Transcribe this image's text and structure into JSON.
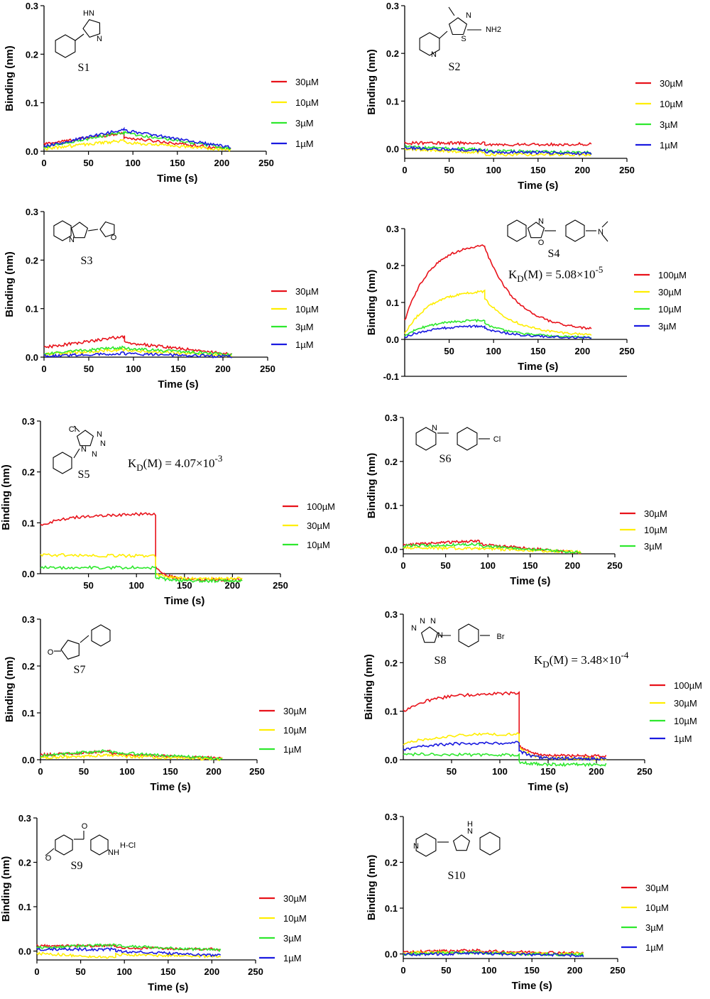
{
  "colors": {
    "30µM_red": "#e8121a",
    "100µM": "#e8121a",
    "30µM_y": "#ffee00",
    "10µM": "#ffee00",
    "3µM_g": "#2ee82e",
    "1µM": "#1a1ae0"
  },
  "chart_data": [
    {
      "type": "line",
      "compound": "S1",
      "xlabel": "Time (s)",
      "ylabel": "Binding (nm)",
      "xlim": [
        0,
        250
      ],
      "ylim": [
        0,
        0.3
      ],
      "xticks": [
        "0",
        "50",
        "100",
        "150",
        "200",
        "250"
      ],
      "yticks": [
        "0.0",
        "0.1",
        "0.2",
        "0.3"
      ],
      "dissociation_at": 90,
      "end": 210,
      "kd": "",
      "series": [
        {
          "name": "30µM",
          "color": "#e8121a",
          "assoc": [
            0.015,
            0.038
          ],
          "dissoc": [
            0.028,
            0.004
          ]
        },
        {
          "name": "10µM",
          "color": "#ffee00",
          "assoc": [
            0.005,
            0.022
          ],
          "dissoc": [
            0.018,
            0.003
          ]
        },
        {
          "name": "3µM",
          "color": "#2ee82e",
          "assoc": [
            0.008,
            0.04
          ],
          "dissoc": [
            0.038,
            0.006
          ]
        },
        {
          "name": "1µM",
          "color": "#1a1ae0",
          "assoc": [
            0.01,
            0.045
          ],
          "dissoc": [
            0.043,
            0.008
          ]
        }
      ]
    },
    {
      "type": "line",
      "compound": "S2",
      "xlabel": "Time (s)",
      "ylabel": "Binding (nm)",
      "xlim": [
        0,
        250
      ],
      "ylim": [
        -0.02,
        0.3
      ],
      "xticks": [
        "0",
        "50",
        "100",
        "150",
        "200",
        "250"
      ],
      "yticks": [
        "0.0",
        "0.1",
        "0.2",
        "0.3"
      ],
      "dissociation_at": 90,
      "end": 210,
      "kd": "",
      "series": [
        {
          "name": "30µM",
          "color": "#e8121a",
          "assoc": [
            0.012,
            0.012
          ],
          "dissoc": [
            0.008,
            0.01
          ]
        },
        {
          "name": "10µM",
          "color": "#ffee00",
          "assoc": [
            0.0,
            -0.008
          ],
          "dissoc": [
            -0.012,
            -0.012
          ]
        },
        {
          "name": "3µM",
          "color": "#2ee82e",
          "assoc": [
            0.004,
            -0.002
          ],
          "dissoc": [
            -0.004,
            -0.008
          ]
        },
        {
          "name": "1µM",
          "color": "#1a1ae0",
          "assoc": [
            0.002,
            -0.004
          ],
          "dissoc": [
            -0.006,
            -0.01
          ]
        }
      ]
    },
    {
      "type": "line",
      "compound": "S3",
      "xlabel": "Time (s)",
      "ylabel": "Binding (nm)",
      "xlim": [
        0,
        250
      ],
      "ylim": [
        0,
        0.3
      ],
      "xticks": [
        "0",
        "50",
        "100",
        "150",
        "200",
        "250"
      ],
      "yticks": [
        "0.0",
        "0.1",
        "0.2",
        "0.3"
      ],
      "dissociation_at": 90,
      "end": 210,
      "kd": "",
      "series": [
        {
          "name": "30µM",
          "color": "#e8121a",
          "assoc": [
            0.02,
            0.043
          ],
          "dissoc": [
            0.03,
            0.006
          ]
        },
        {
          "name": "10µM",
          "color": "#ffee00",
          "assoc": [
            0.006,
            0.016
          ],
          "dissoc": [
            0.014,
            0.003
          ]
        },
        {
          "name": "3µM",
          "color": "#2ee82e",
          "assoc": [
            0.008,
            0.02
          ],
          "dissoc": [
            0.018,
            0.005
          ]
        },
        {
          "name": "1µM",
          "color": "#1a1ae0",
          "assoc": [
            0.002,
            0.008
          ],
          "dissoc": [
            0.007,
            0.001
          ]
        }
      ]
    },
    {
      "type": "line",
      "compound": "S4",
      "xlabel": "Time (s)",
      "ylabel": "Binding (nm)",
      "xlim": [
        0,
        250
      ],
      "ylim": [
        -0.1,
        0.3
      ],
      "xticks": [
        "50",
        "100",
        "150",
        "200",
        "250"
      ],
      "yticks": [
        "-0.1",
        "0.0",
        "0.1",
        "0.2",
        "0.3"
      ],
      "dissociation_at": 90,
      "end": 210,
      "kd": "K",
      "kd_sub": "D",
      "kd_rest": "(M) = 5.08×10",
      "kd_exp": "-5",
      "series": [
        {
          "name": "100µM",
          "color": "#e8121a",
          "assoc": [
            0.05,
            0.255
          ],
          "dissoc": [
            0.25,
            0.022
          ],
          "shape": "kin"
        },
        {
          "name": "30µM",
          "color": "#ffee00",
          "assoc": [
            0.015,
            0.13
          ],
          "dissoc": [
            0.11,
            0.01
          ],
          "shape": "kin"
        },
        {
          "name": "10µM",
          "color": "#2ee82e",
          "assoc": [
            0.01,
            0.052
          ],
          "dissoc": [
            0.042,
            0.005
          ],
          "shape": "kin"
        },
        {
          "name": "3µM",
          "color": "#1a1ae0",
          "assoc": [
            0.005,
            0.036
          ],
          "dissoc": [
            0.03,
            0.004
          ],
          "shape": "kin"
        }
      ]
    },
    {
      "type": "line",
      "compound": "S5",
      "xlabel": "Time (s)",
      "ylabel": "Binding (nm)",
      "xlim": [
        0,
        250
      ],
      "ylim": [
        0,
        0.3
      ],
      "xticks": [
        "50",
        "100",
        "150",
        "200",
        "250"
      ],
      "yticks": [
        "0.0",
        "0.1",
        "0.2",
        "0.3"
      ],
      "dissociation_at": 120,
      "end": 210,
      "kd": "K",
      "kd_sub": "D",
      "kd_rest": "(M) = 4.07×10",
      "kd_exp": "-3",
      "series": [
        {
          "name": "100µM",
          "color": "#e8121a",
          "assoc": [
            0.095,
            0.117
          ],
          "dissoc": [
            0.012,
            -0.012
          ],
          "shape": "fast"
        },
        {
          "name": "30µM",
          "color": "#ffee00",
          "assoc": [
            0.038,
            0.035
          ],
          "dissoc": [
            0.0,
            -0.01
          ],
          "shape": "fast"
        },
        {
          "name": "10µM",
          "color": "#2ee82e",
          "assoc": [
            0.012,
            0.012
          ],
          "dissoc": [
            -0.006,
            -0.014
          ],
          "shape": "fast"
        }
      ]
    },
    {
      "type": "line",
      "compound": "S6",
      "xlabel": "Time (s)",
      "ylabel": "Binding (nm)",
      "xlim": [
        0,
        250
      ],
      "ylim": [
        -0.01,
        0.3
      ],
      "xticks": [
        "0",
        "50",
        "100",
        "150",
        "200",
        "250"
      ],
      "yticks": [
        "0.0",
        "0.1",
        "0.2",
        "0.3"
      ],
      "dissociation_at": 90,
      "end": 210,
      "kd": "",
      "series": [
        {
          "name": "30µM",
          "color": "#e8121a",
          "assoc": [
            0.01,
            0.02
          ],
          "dissoc": [
            0.012,
            -0.008
          ]
        },
        {
          "name": "10µM",
          "color": "#ffee00",
          "assoc": [
            0.004,
            0.002
          ],
          "dissoc": [
            0.002,
            -0.006
          ]
        },
        {
          "name": "3µM",
          "color": "#2ee82e",
          "assoc": [
            0.008,
            0.012
          ],
          "dissoc": [
            0.008,
            -0.007
          ]
        }
      ]
    },
    {
      "type": "line",
      "compound": "S7",
      "xlabel": "Time (s)",
      "ylabel": "Binding (nm)",
      "xlim": [
        0,
        250
      ],
      "ylim": [
        0,
        0.3
      ],
      "xticks": [
        "0",
        "50",
        "100",
        "150",
        "200",
        "250"
      ],
      "yticks": [
        "0.0",
        "0.1",
        "0.2",
        "0.3"
      ],
      "dissociation_at": 80,
      "end": 210,
      "kd": "",
      "series": [
        {
          "name": "30µM",
          "color": "#e8121a",
          "assoc": [
            0.01,
            0.018
          ],
          "dissoc": [
            0.012,
            0.003
          ]
        },
        {
          "name": "10µM",
          "color": "#ffee00",
          "assoc": [
            0.004,
            0.01
          ],
          "dissoc": [
            0.008,
            0.001
          ]
        },
        {
          "name": "1µM",
          "color": "#2ee82e",
          "assoc": [
            0.008,
            0.02
          ],
          "dissoc": [
            0.016,
            0.002
          ]
        }
      ]
    },
    {
      "type": "line",
      "compound": "S8",
      "xlabel": "Time (s)",
      "ylabel": "Binding (nm)",
      "xlim": [
        0,
        250
      ],
      "ylim": [
        0,
        0.3
      ],
      "xticks": [
        "50",
        "100",
        "150",
        "200",
        "250"
      ],
      "yticks": [
        "0.0",
        "0.1",
        "0.2",
        "0.3"
      ],
      "dissociation_at": 120,
      "end": 210,
      "kd": "K",
      "kd_sub": "D",
      "kd_rest": "(M) = 3.48×10",
      "kd_exp": "-4",
      "series": [
        {
          "name": "100µM",
          "color": "#e8121a",
          "assoc": [
            0.1,
            0.137
          ],
          "dissoc": [
            0.03,
            0.008
          ],
          "shape": "fast"
        },
        {
          "name": "30µM",
          "color": "#ffee00",
          "assoc": [
            0.03,
            0.053
          ],
          "dissoc": [
            0.025,
            0.002
          ],
          "shape": "fast"
        },
        {
          "name": "10µM",
          "color": "#2ee82e",
          "assoc": [
            0.012,
            0.01
          ],
          "dissoc": [
            -0.004,
            -0.01
          ],
          "shape": "fast"
        },
        {
          "name": "1µM",
          "color": "#1a1ae0",
          "assoc": [
            0.02,
            0.035
          ],
          "dissoc": [
            0.02,
            0.002
          ],
          "shape": "fast"
        }
      ]
    },
    {
      "type": "line",
      "compound": "S9",
      "xlabel": "Time (s)",
      "ylabel": "Binding (nm)",
      "xlim": [
        0,
        250
      ],
      "ylim": [
        -0.02,
        0.3
      ],
      "xticks": [
        "0",
        "50",
        "100",
        "150",
        "200",
        "250"
      ],
      "yticks": [
        "0.0",
        "0.1",
        "0.2",
        "0.3"
      ],
      "dissociation_at": 90,
      "end": 210,
      "kd": "",
      "series": [
        {
          "name": "30µM",
          "color": "#e8121a",
          "assoc": [
            0.012,
            0.012
          ],
          "dissoc": [
            0.008,
            0.004
          ]
        },
        {
          "name": "10µM",
          "color": "#ffee00",
          "assoc": [
            -0.005,
            -0.015
          ],
          "dissoc": [
            -0.008,
            -0.012
          ]
        },
        {
          "name": "3µM",
          "color": "#2ee82e",
          "assoc": [
            0.008,
            0.014
          ],
          "dissoc": [
            0.012,
            0.002
          ]
        },
        {
          "name": "1µM",
          "color": "#1a1ae0",
          "assoc": [
            0.004,
            0.004
          ],
          "dissoc": [
            0.0,
            -0.01
          ]
        }
      ]
    },
    {
      "type": "line",
      "compound": "S10",
      "xlabel": "Time (s)",
      "ylabel": "Binding (nm)",
      "xlim": [
        0,
        250
      ],
      "ylim": [
        -0.01,
        0.3
      ],
      "xticks": [
        "0",
        "50",
        "100",
        "150",
        "200",
        "250"
      ],
      "yticks": [
        "0.0",
        "0.1",
        "0.2",
        "0.3"
      ],
      "dissociation_at": 90,
      "end": 210,
      "kd": "",
      "series": [
        {
          "name": "30µM",
          "color": "#e8121a",
          "assoc": [
            0.004,
            0.008
          ],
          "dissoc": [
            0.006,
            0.002
          ]
        },
        {
          "name": "10µM",
          "color": "#ffee00",
          "assoc": [
            0.002,
            0.004
          ],
          "dissoc": [
            0.002,
            0.0
          ]
        },
        {
          "name": "3µM",
          "color": "#2ee82e",
          "assoc": [
            0.0,
            0.004
          ],
          "dissoc": [
            0.002,
            -0.002
          ]
        },
        {
          "name": "1µM",
          "color": "#1a1ae0",
          "assoc": [
            -0.002,
            0.002
          ],
          "dissoc": [
            0.001,
            -0.004
          ]
        }
      ]
    }
  ],
  "structures": {
    "S1": [
      "HN",
      "N"
    ],
    "S2": [
      "N",
      "N",
      "S",
      "NH2"
    ],
    "S3": [
      "N",
      "O"
    ],
    "S4": [
      "N",
      "O",
      "N"
    ],
    "S5": [
      "Cl",
      "N",
      "N",
      "N",
      "N"
    ],
    "S6": [
      "N",
      "Cl"
    ],
    "S7": [
      "O"
    ],
    "S8": [
      "N",
      "N",
      "N",
      "N",
      "Br"
    ],
    "S9": [
      "O",
      "O",
      "NH",
      "H-Cl"
    ],
    "S10": [
      "N",
      "H",
      "N"
    ]
  }
}
